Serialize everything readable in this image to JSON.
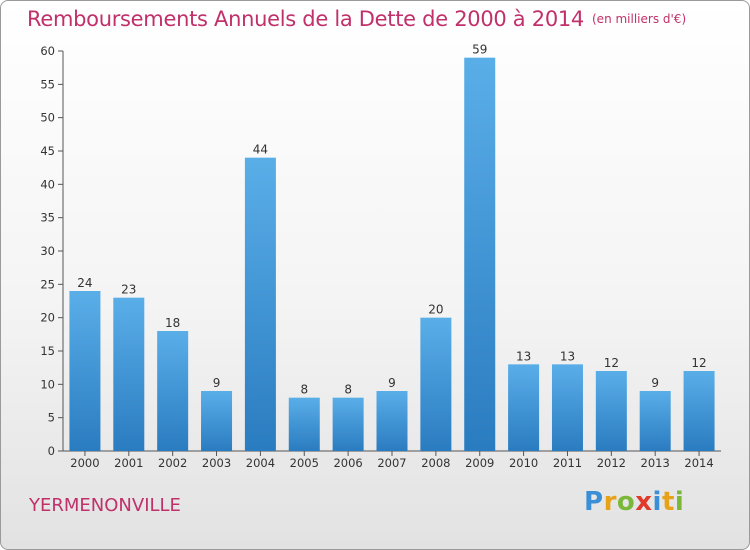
{
  "title": "Remboursements Annuels de la Dette de 2000 à 2014",
  "unit": "(en milliers d'€)",
  "city": "YERMENONVILLE",
  "logo": {
    "text": "Proxiti",
    "letters": [
      "P",
      "r",
      "o",
      "x",
      "i",
      "t",
      "i"
    ],
    "colors": [
      "#3a8fd6",
      "#e8a21a",
      "#7bb83a",
      "#e03a2a",
      "#3a8fd6",
      "#e8a21a",
      "#7bb83a"
    ]
  },
  "chart_data": {
    "type": "bar",
    "categories": [
      "2000",
      "2001",
      "2002",
      "2003",
      "2004",
      "2005",
      "2006",
      "2007",
      "2008",
      "2009",
      "2010",
      "2011",
      "2012",
      "2013",
      "2014"
    ],
    "values": [
      24,
      23,
      18,
      9,
      44,
      8,
      8,
      9,
      20,
      59,
      13,
      13,
      12,
      9,
      12
    ],
    "data_labels": [
      "24",
      "23",
      "18",
      "9",
      "44",
      "8",
      "8",
      "9",
      "20",
      "59",
      "13",
      "13",
      "12",
      "9",
      "12"
    ],
    "ylim": [
      0,
      60
    ],
    "yticks": [
      0,
      5,
      10,
      15,
      20,
      25,
      30,
      35,
      40,
      45,
      50,
      55,
      60
    ],
    "ytick_labels": [
      "0",
      "5",
      "10",
      "15",
      "20",
      "25",
      "30",
      "35",
      "40",
      "45",
      "50",
      "55",
      "60"
    ],
    "grid": false,
    "bar_color_top": "#5aaee8",
    "bar_color_bottom": "#2a7cc0",
    "axis_color": "#555555"
  }
}
